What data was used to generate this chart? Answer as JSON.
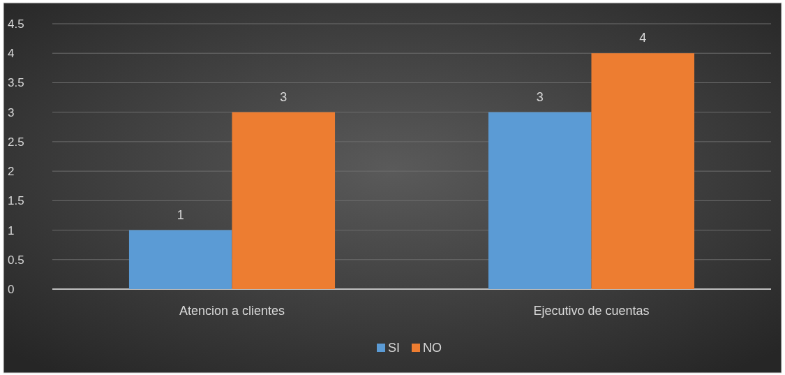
{
  "chart_data": {
    "type": "bar",
    "categories": [
      "Atencion a clientes",
      "Ejecutivo de cuentas"
    ],
    "series": [
      {
        "name": "SI",
        "color": "#5b9bd5",
        "values": [
          1,
          3
        ]
      },
      {
        "name": "NO",
        "color": "#ed7d31",
        "values": [
          3,
          4
        ]
      }
    ],
    "ylim": [
      0,
      4.5
    ],
    "yticks": [
      0,
      0.5,
      1,
      1.5,
      2,
      2.5,
      3,
      3.5,
      4,
      4.5
    ],
    "grid": "y",
    "legend": "bottom",
    "data_labels": true
  }
}
